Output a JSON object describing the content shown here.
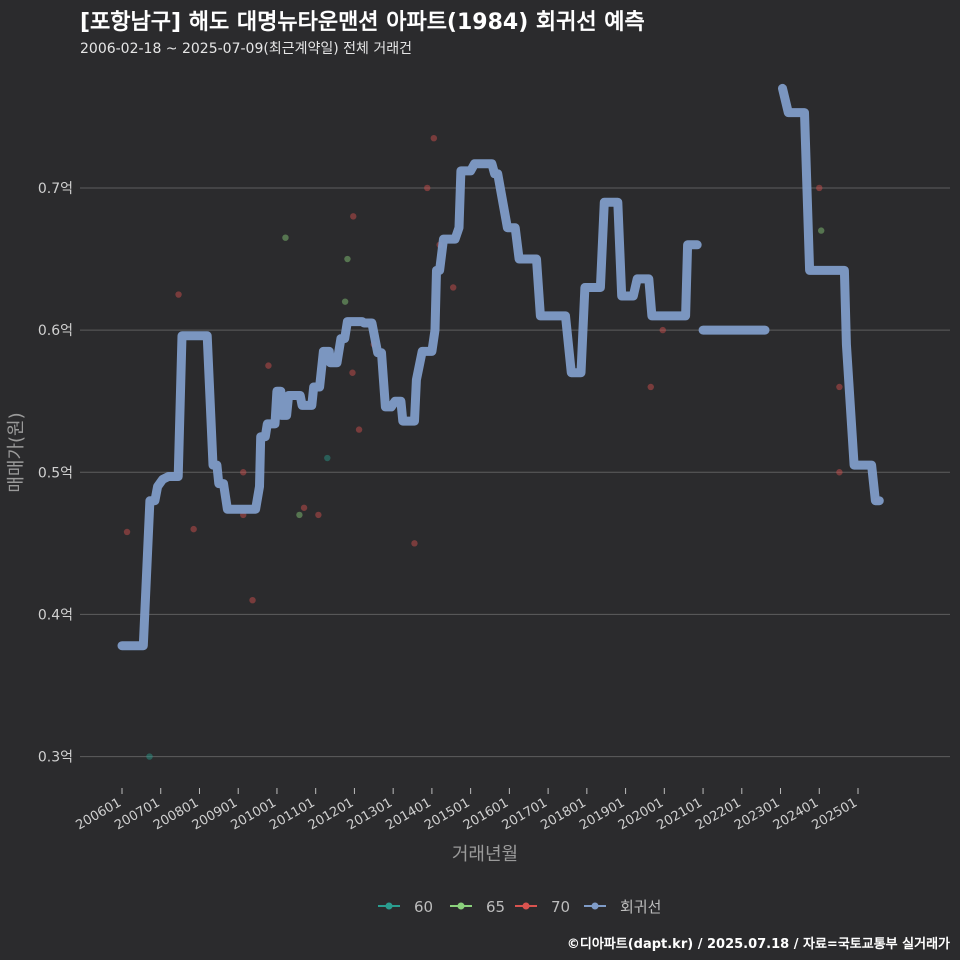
{
  "header": {
    "title": "[포항남구] 해도 대명뉴타운맨션 아파트(1984) 회귀선 예측",
    "subtitle": "2006-02-18 ~ 2025-07-09(최근계약일) 전체 거래건"
  },
  "footer": {
    "credit": "©디아파트(dapt.kr) / 2025.07.18 / 자료=국토교통부 실거래가"
  },
  "colors": {
    "background": "#2b2b2d",
    "grid": "#5e5e5e",
    "s60": "#2a9d8f",
    "s65": "#8bd17c",
    "s70": "#d9534f",
    "regression": "#7f9cc8"
  },
  "chart_data": {
    "type": "scatter",
    "xlabel": "거래년월",
    "ylabel": "매매가(원)",
    "ylim": [
      0.28,
      0.79
    ],
    "yticks": [
      0.3,
      0.4,
      0.5,
      0.6,
      0.7
    ],
    "ytick_labels": [
      "0.3억",
      "0.4억",
      "0.5억",
      "0.6억",
      "0.7억"
    ],
    "xticks": [
      2006,
      2007,
      2008,
      2009,
      2010,
      2011,
      2012,
      2013,
      2014,
      2015,
      2016,
      2017,
      2018,
      2019,
      2020,
      2021,
      2022,
      2023,
      2024,
      2025
    ],
    "xtick_labels": [
      "200601",
      "200701",
      "200801",
      "200901",
      "201001",
      "201101",
      "201201",
      "201301",
      "201401",
      "201501",
      "201601",
      "201701",
      "201801",
      "201901",
      "202001",
      "202101",
      "202201",
      "202301",
      "202401",
      "202501"
    ],
    "legend": [
      "60",
      "65",
      "70",
      "회귀선"
    ],
    "series": [
      {
        "name": "60",
        "color": "#2a9d8f",
        "points": [
          [
            2006.71,
            0.3
          ],
          [
            2011.3,
            0.51
          ]
        ]
      },
      {
        "name": "65",
        "color": "#8bd17c",
        "points": [
          [
            2010.22,
            0.665
          ],
          [
            2010.58,
            0.47
          ],
          [
            2011.76,
            0.62
          ],
          [
            2011.82,
            0.65
          ],
          [
            2024.05,
            0.67
          ]
        ]
      },
      {
        "name": "70",
        "color": "#d9534f",
        "points": [
          [
            2006.13,
            0.458
          ],
          [
            2007.46,
            0.625
          ],
          [
            2007.85,
            0.46
          ],
          [
            2009.13,
            0.5
          ],
          [
            2009.13,
            0.47
          ],
          [
            2009.37,
            0.41
          ],
          [
            2009.78,
            0.575
          ],
          [
            2010.7,
            0.475
          ],
          [
            2011.07,
            0.47
          ],
          [
            2011.95,
            0.57
          ],
          [
            2011.97,
            0.68
          ],
          [
            2012.12,
            0.53
          ],
          [
            2012.5,
            0.59
          ],
          [
            2013.55,
            0.45
          ],
          [
            2013.88,
            0.7
          ],
          [
            2014.05,
            0.735
          ],
          [
            2014.2,
            0.66
          ],
          [
            2014.55,
            0.63
          ],
          [
            2019.65,
            0.56
          ],
          [
            2019.96,
            0.6
          ],
          [
            2024.0,
            0.7
          ],
          [
            2024.52,
            0.56
          ],
          [
            2024.52,
            0.5
          ],
          [
            2025.5,
            0.48
          ]
        ]
      },
      {
        "name": "회귀선",
        "color": "#7f9cc8",
        "segments": [
          [
            [
              2006.0,
              0.378
            ],
            [
              2006.55,
              0.378
            ],
            [
              2006.72,
              0.48
            ],
            [
              2006.85,
              0.48
            ],
            [
              2006.92,
              0.49
            ],
            [
              2007.05,
              0.495
            ],
            [
              2007.2,
              0.497
            ],
            [
              2007.45,
              0.497
            ],
            [
              2007.55,
              0.596
            ],
            [
              2008.2,
              0.596
            ],
            [
              2008.35,
              0.505
            ],
            [
              2008.45,
              0.505
            ],
            [
              2008.5,
              0.492
            ],
            [
              2008.62,
              0.492
            ],
            [
              2008.72,
              0.474
            ],
            [
              2009.45,
              0.474
            ],
            [
              2009.55,
              0.49
            ],
            [
              2009.58,
              0.525
            ],
            [
              2009.7,
              0.525
            ],
            [
              2009.75,
              0.534
            ],
            [
              2009.95,
              0.534
            ],
            [
              2010.0,
              0.557
            ],
            [
              2010.1,
              0.557
            ],
            [
              2010.12,
              0.54
            ],
            [
              2010.25,
              0.54
            ],
            [
              2010.3,
              0.554
            ],
            [
              2010.6,
              0.554
            ],
            [
              2010.65,
              0.547
            ],
            [
              2010.9,
              0.547
            ],
            [
              2010.95,
              0.56
            ],
            [
              2011.1,
              0.56
            ],
            [
              2011.2,
              0.585
            ],
            [
              2011.35,
              0.585
            ],
            [
              2011.38,
              0.577
            ],
            [
              2011.55,
              0.577
            ],
            [
              2011.65,
              0.594
            ],
            [
              2011.75,
              0.594
            ],
            [
              2011.82,
              0.606
            ],
            [
              2012.2,
              0.606
            ],
            [
              2012.25,
              0.605
            ],
            [
              2012.45,
              0.605
            ],
            [
              2012.6,
              0.584
            ],
            [
              2012.7,
              0.584
            ],
            [
              2012.8,
              0.546
            ],
            [
              2012.95,
              0.546
            ],
            [
              2013.05,
              0.55
            ],
            [
              2013.2,
              0.55
            ],
            [
              2013.25,
              0.536
            ],
            [
              2013.55,
              0.536
            ],
            [
              2013.6,
              0.565
            ],
            [
              2013.75,
              0.585
            ],
            [
              2014.0,
              0.585
            ],
            [
              2014.08,
              0.6
            ],
            [
              2014.12,
              0.642
            ],
            [
              2014.2,
              0.642
            ],
            [
              2014.3,
              0.664
            ],
            [
              2014.6,
              0.664
            ],
            [
              2014.7,
              0.672
            ],
            [
              2014.75,
              0.712
            ],
            [
              2015.0,
              0.712
            ],
            [
              2015.1,
              0.717
            ],
            [
              2015.55,
              0.717
            ],
            [
              2015.62,
              0.71
            ],
            [
              2015.7,
              0.71
            ],
            [
              2015.95,
              0.672
            ],
            [
              2016.15,
              0.672
            ],
            [
              2016.25,
              0.65
            ],
            [
              2016.7,
              0.65
            ],
            [
              2016.8,
              0.61
            ],
            [
              2017.45,
              0.61
            ],
            [
              2017.6,
              0.57
            ],
            [
              2017.85,
              0.57
            ],
            [
              2017.95,
              0.63
            ],
            [
              2018.35,
              0.63
            ],
            [
              2018.45,
              0.69
            ],
            [
              2018.8,
              0.69
            ],
            [
              2018.9,
              0.624
            ],
            [
              2019.2,
              0.624
            ],
            [
              2019.3,
              0.636
            ],
            [
              2019.6,
              0.636
            ],
            [
              2019.68,
              0.61
            ],
            [
              2020.55,
              0.61
            ],
            [
              2020.6,
              0.66
            ],
            [
              2020.85,
              0.66
            ]
          ],
          [
            [
              2021.0,
              0.6
            ],
            [
              2022.6,
              0.6
            ]
          ],
          [
            [
              2023.05,
              0.77
            ],
            [
              2023.2,
              0.753
            ],
            [
              2023.62,
              0.753
            ],
            [
              2023.75,
              0.642
            ],
            [
              2024.65,
              0.642
            ],
            [
              2024.7,
              0.59
            ],
            [
              2024.9,
              0.505
            ],
            [
              2025.35,
              0.505
            ],
            [
              2025.45,
              0.48
            ],
            [
              2025.55,
              0.48
            ]
          ]
        ]
      }
    ]
  }
}
